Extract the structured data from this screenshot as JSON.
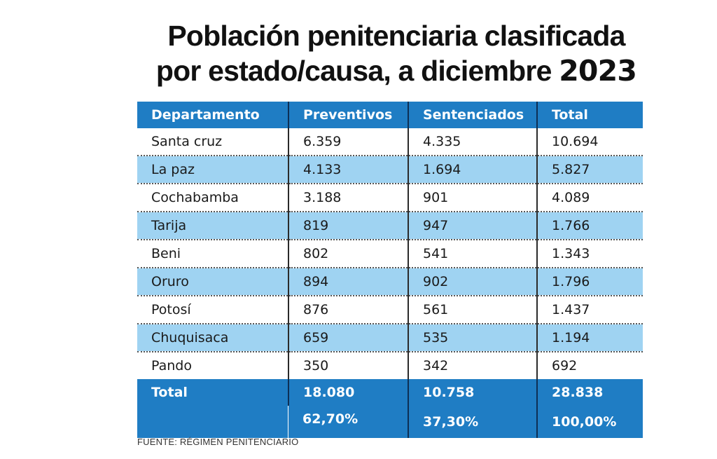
{
  "title": {
    "line1": "Población penitenciaria clasificada",
    "line2_text": "por estado/causa, a diciembre ",
    "line2_year": "2023"
  },
  "source": "FUENTE: RÉGIMEN PENITENCIARIO",
  "colors": {
    "header_bg": "#1f7dc4",
    "stripe_bg": "#9fd3f2",
    "row_bg": "#ffffff"
  },
  "chart_data": {
    "type": "table",
    "title": "Población penitenciaria clasificada por estado/causa, a diciembre 2023",
    "columns": [
      "Departamento",
      "Preventivos",
      "Sentenciados",
      "Total"
    ],
    "rows": [
      [
        "Santa cruz",
        "6.359",
        "4.335",
        "10.694"
      ],
      [
        "La paz",
        "4.133",
        "1.694",
        "5.827"
      ],
      [
        "Cochabamba",
        "3.188",
        "901",
        "4.089"
      ],
      [
        "Tarija",
        "819",
        "947",
        "1.766"
      ],
      [
        "Beni",
        "802",
        "541",
        "1.343"
      ],
      [
        "Oruro",
        "894",
        "902",
        "1.796"
      ],
      [
        "Potosí",
        "876",
        "561",
        "1.437"
      ],
      [
        "Chuquisaca",
        "659",
        "535",
        "1.194"
      ],
      [
        "Pando",
        "350",
        "342",
        "692"
      ]
    ],
    "total_label": "Total",
    "totals": [
      "18.080",
      "10.758",
      "28.838"
    ],
    "percentages": [
      "62,70%",
      "37,30%",
      "100,00%"
    ]
  }
}
